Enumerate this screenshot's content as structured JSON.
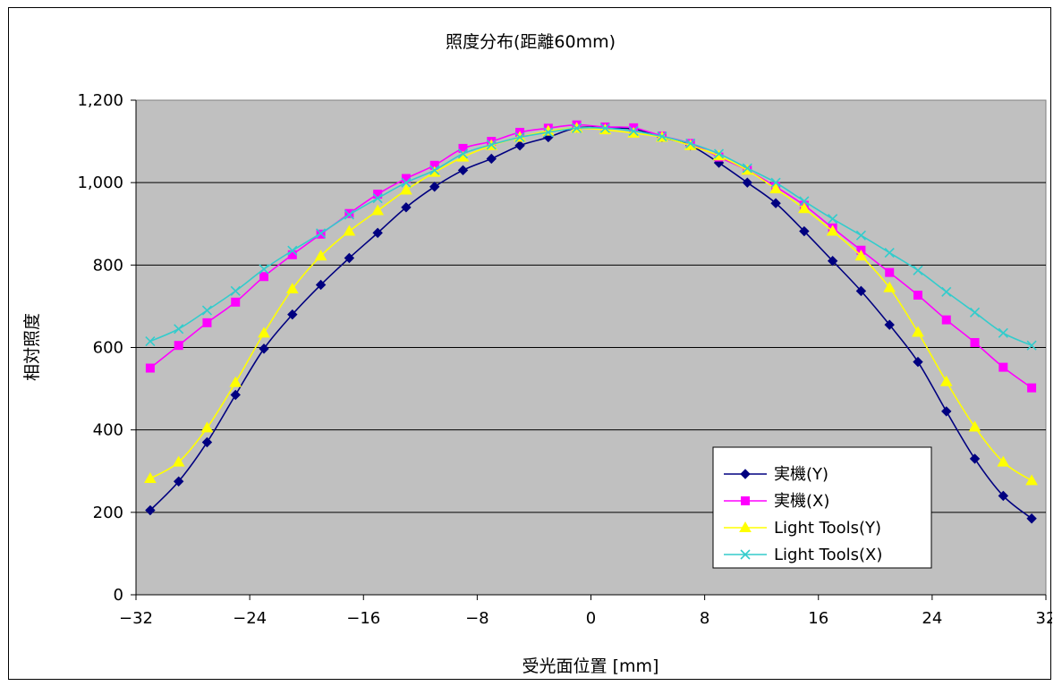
{
  "chart_data": {
    "type": "line",
    "title": "照度分布(距離60mm)",
    "xlabel": "受光面位置 [mm]",
    "ylabel": "相対照度",
    "xlim": [
      -32,
      32
    ],
    "ylim": [
      0,
      1200
    ],
    "xticks": [
      -32,
      -24,
      -16,
      -8,
      0,
      8,
      16,
      24,
      32
    ],
    "xtick_labels": [
      "−32",
      "−24",
      "−16",
      "−8",
      "0",
      "8",
      "16",
      "24",
      "32"
    ],
    "yticks": [
      0,
      200,
      400,
      600,
      800,
      1000,
      1200
    ],
    "ytick_labels": [
      "0",
      "200",
      "400",
      "600",
      "800",
      "1,000",
      "1,200"
    ],
    "grid": "horizontal",
    "background": "#c0c0c0",
    "legend_position": "bottom-right",
    "x": [
      -31,
      -29,
      -27,
      -25,
      -23,
      -21,
      -19,
      -17,
      -15,
      -13,
      -11,
      -9,
      -7,
      -5,
      -3,
      -1,
      1,
      3,
      5,
      7,
      9,
      11,
      13,
      15,
      17,
      19,
      21,
      23,
      25,
      27,
      29,
      31
    ],
    "series": [
      {
        "name": "実機(Y)",
        "color": "#000080",
        "marker": "diamond",
        "values": [
          205,
          275,
          370,
          485,
          597,
          680,
          752,
          817,
          878,
          940,
          990,
          1030,
          1058,
          1090,
          1110,
          1133,
          1133,
          1130,
          1110,
          1090,
          1048,
          1000,
          950,
          882,
          810,
          737,
          655,
          565,
          445,
          330,
          240,
          185
        ]
      },
      {
        "name": "実機(X)",
        "color": "#ff00ff",
        "marker": "square",
        "values": [
          550,
          605,
          660,
          710,
          772,
          825,
          875,
          925,
          972,
          1010,
          1042,
          1083,
          1100,
          1122,
          1132,
          1140,
          1135,
          1133,
          1113,
          1095,
          1062,
          1030,
          990,
          945,
          890,
          836,
          782,
          727,
          667,
          612,
          552,
          502
        ]
      },
      {
        "name": "Light Tools(Y)",
        "color": "#ffff00",
        "marker": "triangle",
        "values": [
          282,
          322,
          405,
          515,
          635,
          742,
          822,
          882,
          932,
          982,
          1025,
          1062,
          1090,
          1110,
          1125,
          1132,
          1128,
          1120,
          1110,
          1090,
          1065,
          1030,
          985,
          937,
          882,
          822,
          745,
          637,
          517,
          407,
          322,
          277
        ]
      },
      {
        "name": "Light Tools(X)",
        "color": "#33cccc",
        "marker": "x",
        "values": [
          615,
          645,
          690,
          737,
          790,
          835,
          877,
          922,
          962,
          1000,
          1030,
          1070,
          1092,
          1110,
          1122,
          1132,
          1132,
          1125,
          1112,
          1095,
          1070,
          1035,
          1000,
          955,
          912,
          872,
          830,
          787,
          735,
          685,
          635,
          605
        ]
      }
    ]
  }
}
